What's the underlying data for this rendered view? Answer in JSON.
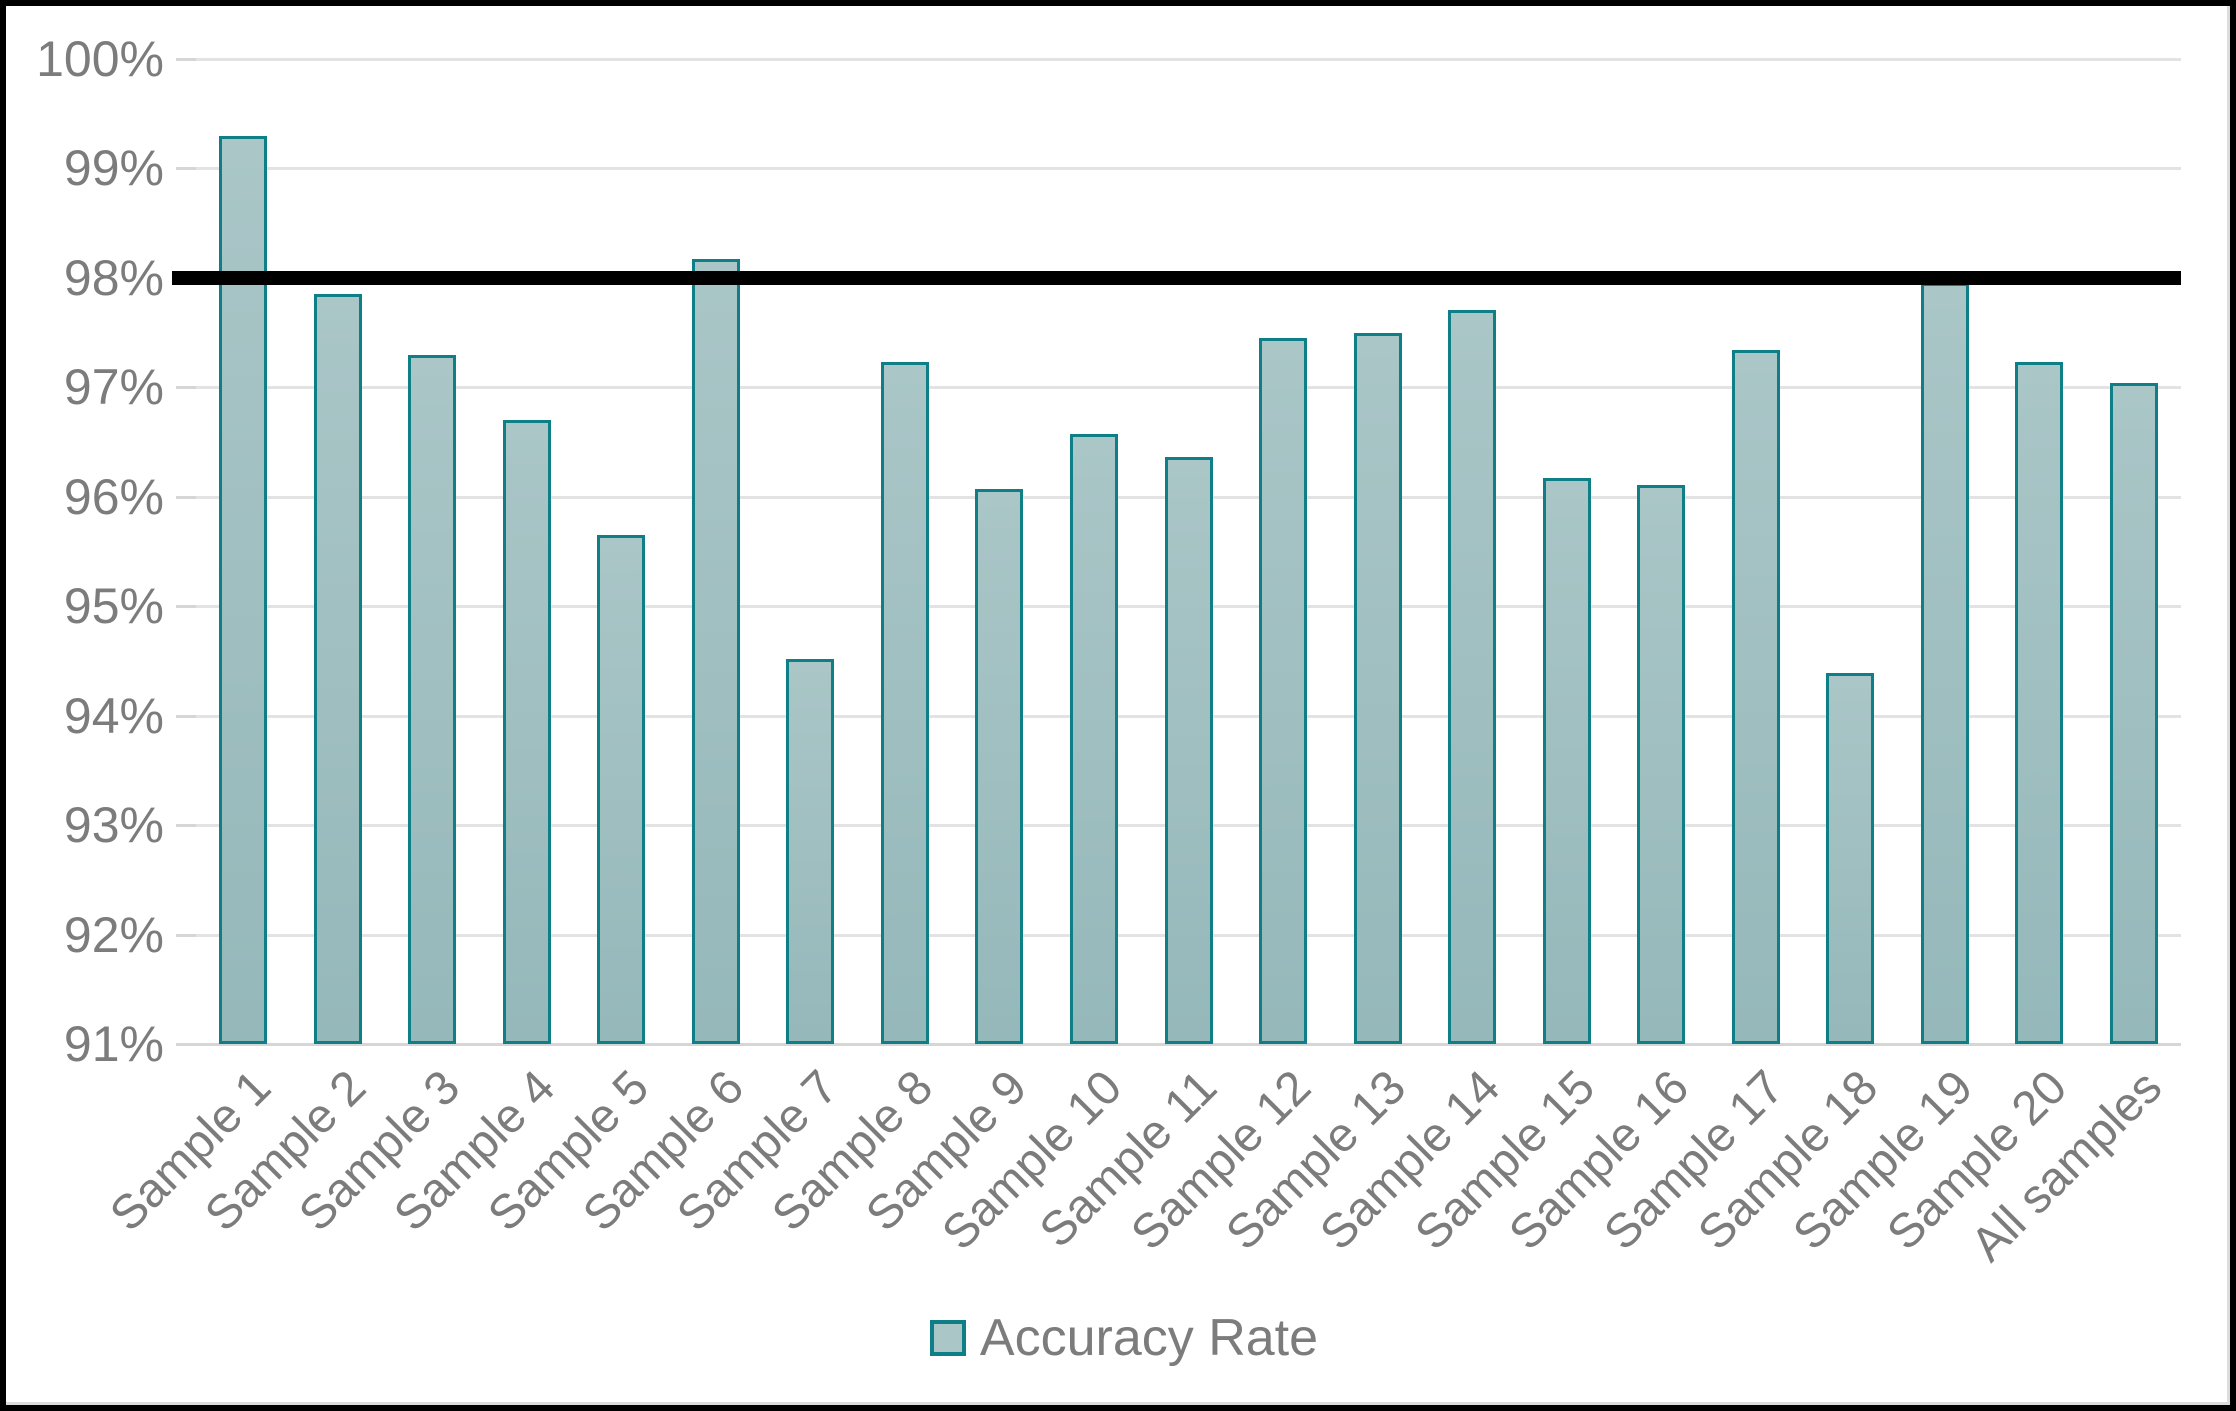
{
  "chart_data": {
    "type": "bar",
    "title": "",
    "series_name": "Accuracy Rate",
    "categories": [
      "Sample 1",
      "Sample 2",
      "Sample 3",
      "Sample 4",
      "Sample 5",
      "Sample 6",
      "Sample 7",
      "Sample 8",
      "Sample 9",
      "Sample 10",
      "Sample 11",
      "Sample 12",
      "Sample 13",
      "Sample 14",
      "Sample 15",
      "Sample 16",
      "Sample 17",
      "Sample 18",
      "Sample 19",
      "Sample 20",
      "All samples"
    ],
    "values": [
      99.3,
      97.85,
      97.3,
      96.7,
      95.65,
      98.17,
      94.52,
      97.23,
      96.07,
      96.57,
      96.36,
      97.45,
      97.5,
      97.71,
      96.17,
      96.11,
      97.34,
      94.39,
      97.95,
      97.23,
      97.04
    ],
    "ylim": [
      91,
      100
    ],
    "y_tick_step": 1,
    "y_tick_labels": [
      "100%",
      "99%",
      "98%",
      "97%",
      "96%",
      "95%",
      "94%",
      "93%",
      "92%",
      "91%"
    ],
    "reference_line": {
      "value": 98,
      "color": "#000000"
    },
    "grid": true,
    "legend_position": "bottom",
    "legend_entries": [
      "Accuracy Rate"
    ],
    "colors": {
      "bar_fill_top": "#aac6c7",
      "bar_fill_bottom": "#95b8ba",
      "bar_border": "#0e7f86",
      "gridline": "#e3e3e3",
      "axis_line": "#d6d6d6",
      "axis_text": "#7c7c7c",
      "reference_line": "#000000",
      "background": "#ffffff",
      "frame_border": "#000000"
    }
  }
}
